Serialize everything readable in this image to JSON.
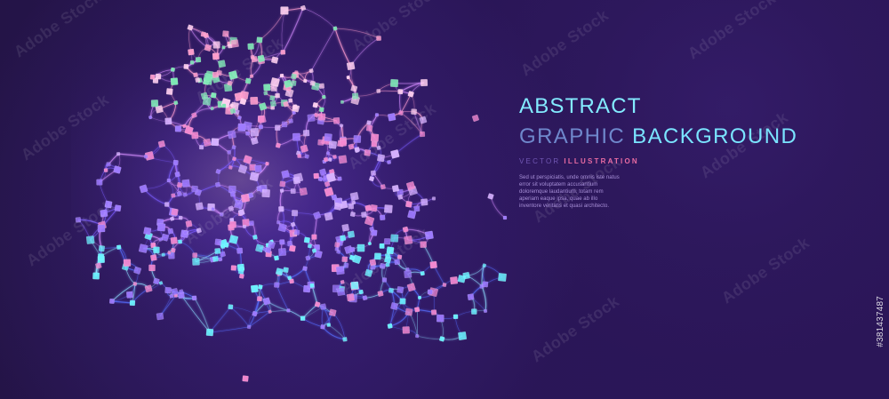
{
  "copy": {
    "title_line_1": "ABSTRACT",
    "title_line_2_part_1": "GRAPHIC",
    "title_line_2_part_2": "BACKGROUND",
    "subtitle_part_1": "VECTOR",
    "subtitle_part_2": "ILLUSTRATION",
    "body_lines": [
      "Sed ut perspiciatis, unde omnis iste natus",
      "error sit voluptatem accusantium",
      "doloremque laudantium, totam rem",
      "aperiam eaque ipsa, quae ab illo",
      "inventore veritatis et quasi architecto."
    ]
  },
  "stock": {
    "watermark": "Adobe Stock",
    "id": "#381437487"
  },
  "colors": {
    "background_dark": "#241447",
    "background_mid": "#2a1657",
    "title_cyan": "#83ebff",
    "title_blue": "#6f88cc",
    "subtitle_violet": "#7157b4",
    "subtitle_pink": "#e86ba2",
    "body_text": "#a991d9",
    "node_colors": [
      "#6cf4ff",
      "#9f7bff",
      "#f58ad1",
      "#ff9fcd",
      "#d6b1ff",
      "#7ee7b5",
      "#ffd0f0"
    ],
    "line_colors": [
      "#566dff",
      "#7b5cff",
      "#d48cff",
      "#ff9ed1",
      "#8ddcff"
    ]
  }
}
